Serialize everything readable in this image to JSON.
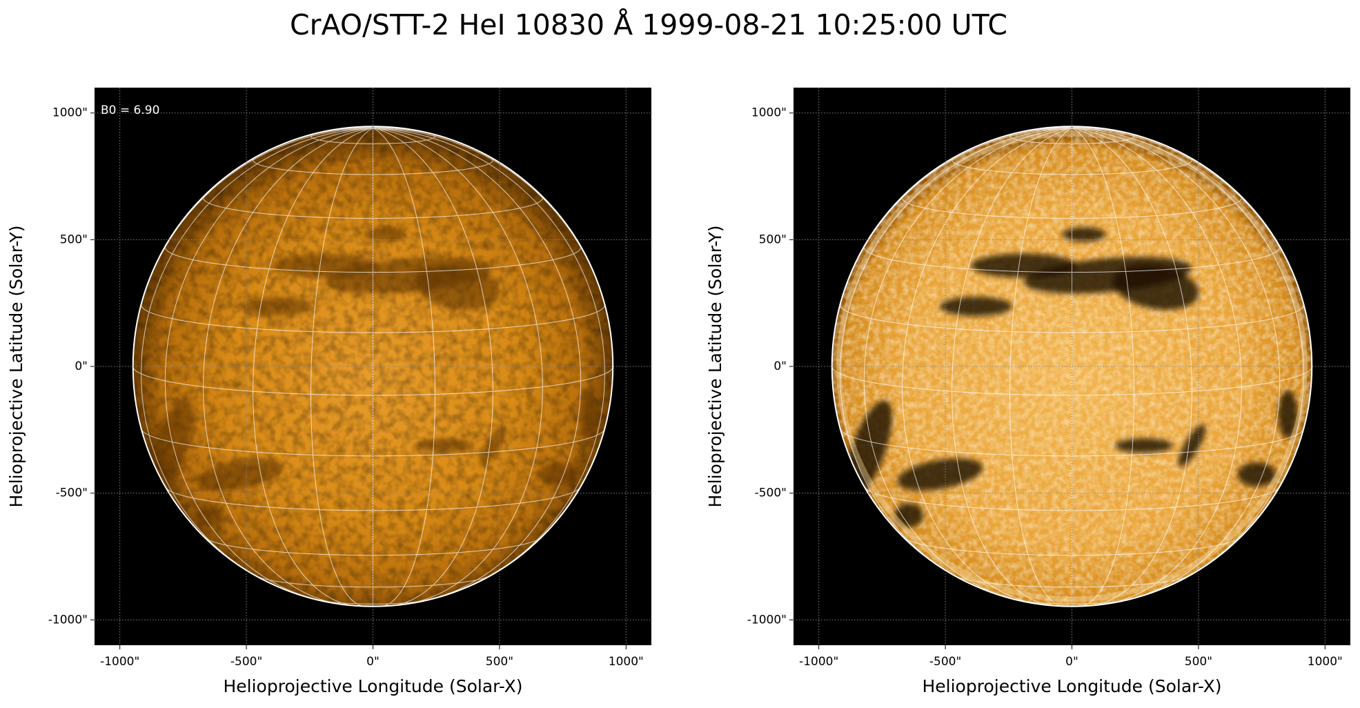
{
  "title": "CrAO/STT-2 HeI 10830 Å 1999-08-21 10:25:00 UTC",
  "chart_data": [
    {
      "type": "image",
      "style": "plain",
      "annotation": "B0 = 6.90",
      "b0": 6.9,
      "solar_radius": 948,
      "xlabel": "Helioprojective Longitude (Solar-X)",
      "ylabel": "Helioprojective Latitude (Solar-Y)",
      "xlim": [
        -1100,
        1100
      ],
      "ylim": [
        -1100,
        1100
      ],
      "xticks": [
        {
          "value": -1000,
          "label": "-1000\""
        },
        {
          "value": -500,
          "label": "-500\""
        },
        {
          "value": 0,
          "label": "0\""
        },
        {
          "value": 500,
          "label": "500\""
        },
        {
          "value": 1000,
          "label": "1000\""
        }
      ],
      "yticks": [
        {
          "value": -1000,
          "label": "-1000\""
        },
        {
          "value": -500,
          "label": "-500\""
        },
        {
          "value": 0,
          "label": "0\""
        },
        {
          "value": 500,
          "label": "500\""
        },
        {
          "value": 1000,
          "label": "1000\""
        }
      ],
      "grid": true
    },
    {
      "type": "image",
      "style": "enhanced",
      "b0": 6.9,
      "solar_radius": 948,
      "xlabel": "Helioprojective Longitude (Solar-X)",
      "ylabel": "Helioprojective Latitude (Solar-Y)",
      "xlim": [
        -1100,
        1100
      ],
      "ylim": [
        -1100,
        1100
      ],
      "xticks": [
        {
          "value": -1000,
          "label": "-1000\""
        },
        {
          "value": -500,
          "label": "-500\""
        },
        {
          "value": 0,
          "label": "0\""
        },
        {
          "value": 500,
          "label": "500\""
        },
        {
          "value": 1000,
          "label": "1000\""
        }
      ],
      "yticks": [
        {
          "value": -1000,
          "label": "-1000\""
        },
        {
          "value": -500,
          "label": "-500\""
        },
        {
          "value": 0,
          "label": "0\""
        },
        {
          "value": 500,
          "label": "500\""
        },
        {
          "value": 1000,
          "label": "1000\""
        }
      ],
      "grid": true
    }
  ]
}
